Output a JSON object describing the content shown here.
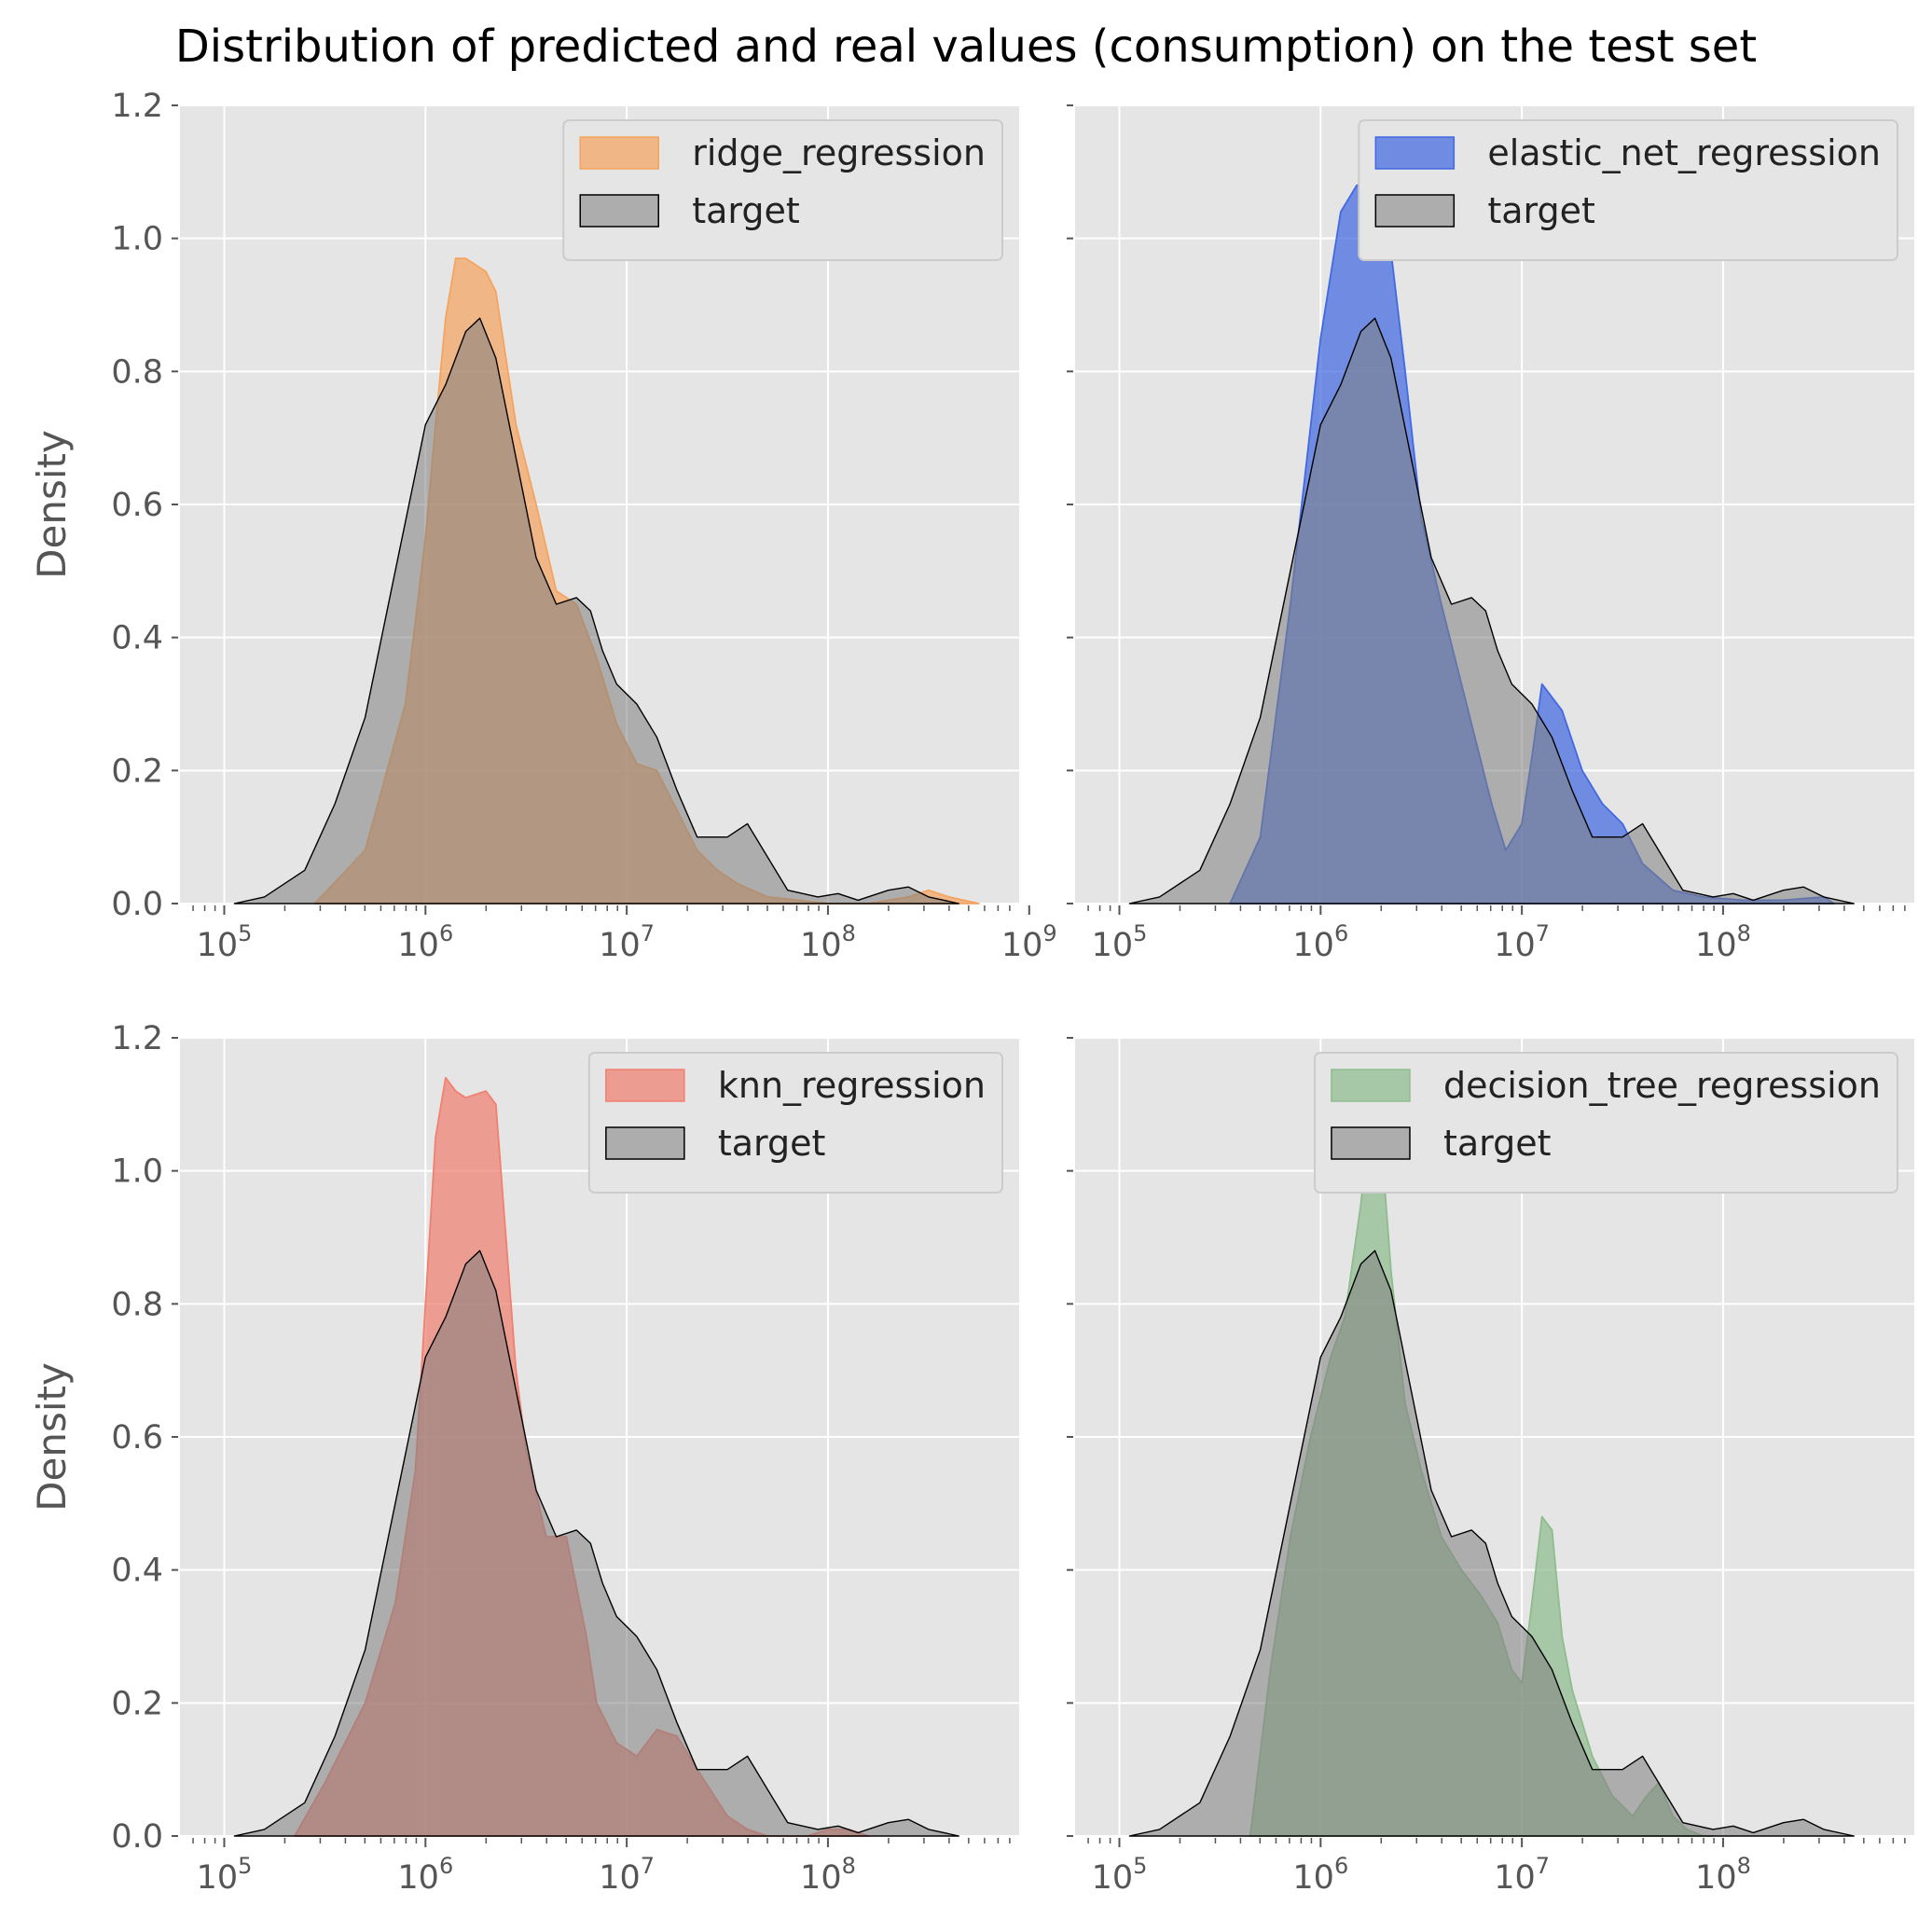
{
  "figure": {
    "title": "Distribution of predicted and real values (consumption) on the test set"
  },
  "chart_data": [
    {
      "type": "area",
      "xscale": "log",
      "xticks": [
        "10^5",
        "10^6",
        "10^7",
        "10^8",
        "10^9"
      ],
      "xlim_log10": [
        4.78,
        8.95
      ],
      "ylim": [
        0,
        1.2
      ],
      "yticks": [
        "0.0",
        "0.2",
        "0.4",
        "0.6",
        "0.8",
        "1.0",
        "1.2"
      ],
      "ylabel": "Density",
      "grid": true,
      "legend_position": "top-right",
      "series": [
        {
          "name": "ridge_regression",
          "color": "#f4a460",
          "x_log10": [
            5.45,
            5.7,
            5.9,
            6.0,
            6.05,
            6.1,
            6.15,
            6.2,
            6.25,
            6.3,
            6.35,
            6.4,
            6.45,
            6.55,
            6.65,
            6.75,
            6.85,
            6.95,
            7.0,
            7.05,
            7.15,
            7.25,
            7.35,
            7.45,
            7.55,
            7.7,
            7.85,
            8.0,
            8.2,
            8.4,
            8.5,
            8.6,
            8.75
          ],
          "y": [
            0.0,
            0.08,
            0.3,
            0.55,
            0.72,
            0.88,
            0.97,
            0.97,
            0.96,
            0.95,
            0.92,
            0.82,
            0.72,
            0.6,
            0.47,
            0.45,
            0.37,
            0.27,
            0.24,
            0.21,
            0.2,
            0.14,
            0.08,
            0.05,
            0.03,
            0.01,
            0.005,
            0.0,
            0.0,
            0.01,
            0.02,
            0.01,
            0.0
          ]
        },
        {
          "name": "target",
          "color": "#808080",
          "x_log10": [
            5.05,
            5.2,
            5.4,
            5.55,
            5.7,
            5.85,
            6.0,
            6.1,
            6.2,
            6.27,
            6.35,
            6.45,
            6.55,
            6.65,
            6.75,
            6.82,
            6.88,
            6.95,
            7.05,
            7.15,
            7.25,
            7.35,
            7.5,
            7.6,
            7.7,
            7.8,
            7.95,
            8.05,
            8.15,
            8.3,
            8.4,
            8.5,
            8.65
          ],
          "y": [
            0.0,
            0.01,
            0.05,
            0.15,
            0.28,
            0.5,
            0.72,
            0.78,
            0.86,
            0.88,
            0.82,
            0.67,
            0.52,
            0.45,
            0.46,
            0.44,
            0.38,
            0.33,
            0.3,
            0.25,
            0.17,
            0.1,
            0.1,
            0.12,
            0.07,
            0.02,
            0.01,
            0.015,
            0.005,
            0.02,
            0.025,
            0.01,
            0.0
          ]
        }
      ]
    },
    {
      "type": "area",
      "xscale": "log",
      "xticks": [
        "10^5",
        "10^6",
        "10^7",
        "10^8"
      ],
      "xlim_log10": [
        4.78,
        8.95
      ],
      "ylim": [
        0,
        1.2
      ],
      "yticks": [
        "0.0",
        "0.2",
        "0.4",
        "0.6",
        "0.8",
        "1.0",
        "1.2"
      ],
      "ylabel": "",
      "grid": true,
      "legend_position": "top-right",
      "series": [
        {
          "name": "elastic_net_regression",
          "color": "#4169e1",
          "x_log10": [
            5.55,
            5.7,
            5.85,
            6.0,
            6.1,
            6.18,
            6.25,
            6.3,
            6.35,
            6.42,
            6.5,
            6.6,
            6.75,
            6.85,
            6.92,
            7.0,
            7.05,
            7.1,
            7.2,
            7.3,
            7.4,
            7.5,
            7.6,
            7.75,
            7.9,
            8.1,
            8.3,
            8.5,
            8.55
          ],
          "y": [
            0.0,
            0.1,
            0.45,
            0.85,
            1.04,
            1.08,
            1.08,
            1.06,
            0.98,
            0.8,
            0.58,
            0.45,
            0.27,
            0.15,
            0.08,
            0.12,
            0.22,
            0.33,
            0.29,
            0.2,
            0.15,
            0.12,
            0.06,
            0.02,
            0.01,
            0.005,
            0.005,
            0.01,
            0.0
          ]
        },
        {
          "name": "target",
          "color": "#808080",
          "x_log10": [
            5.05,
            5.2,
            5.4,
            5.55,
            5.7,
            5.85,
            6.0,
            6.1,
            6.2,
            6.27,
            6.35,
            6.45,
            6.55,
            6.65,
            6.75,
            6.82,
            6.88,
            6.95,
            7.05,
            7.15,
            7.25,
            7.35,
            7.5,
            7.6,
            7.7,
            7.8,
            7.95,
            8.05,
            8.15,
            8.3,
            8.4,
            8.5,
            8.65
          ],
          "y": [
            0.0,
            0.01,
            0.05,
            0.15,
            0.28,
            0.5,
            0.72,
            0.78,
            0.86,
            0.88,
            0.82,
            0.67,
            0.52,
            0.45,
            0.46,
            0.44,
            0.38,
            0.33,
            0.3,
            0.25,
            0.17,
            0.1,
            0.1,
            0.12,
            0.07,
            0.02,
            0.01,
            0.015,
            0.005,
            0.02,
            0.025,
            0.01,
            0.0
          ]
        }
      ]
    },
    {
      "type": "area",
      "xscale": "log",
      "xticks": [
        "10^5",
        "10^6",
        "10^7",
        "10^8"
      ],
      "xlim_log10": [
        4.78,
        8.95
      ],
      "ylim": [
        0,
        1.2
      ],
      "yticks": [
        "0.0",
        "0.2",
        "0.4",
        "0.6",
        "0.8",
        "1.0",
        "1.2"
      ],
      "ylabel": "Density",
      "grid": true,
      "legend_position": "top-right",
      "series": [
        {
          "name": "knn_regression",
          "color": "#f08070",
          "x_log10": [
            5.35,
            5.5,
            5.7,
            5.85,
            5.95,
            6.0,
            6.05,
            6.1,
            6.15,
            6.2,
            6.3,
            6.35,
            6.4,
            6.45,
            6.5,
            6.6,
            6.7,
            6.8,
            6.85,
            6.95,
            7.05,
            7.15,
            7.25,
            7.35,
            7.5,
            7.6,
            7.7,
            7.9,
            8.0,
            8.1,
            8.2
          ],
          "y": [
            0.0,
            0.08,
            0.2,
            0.35,
            0.55,
            0.8,
            1.05,
            1.14,
            1.12,
            1.11,
            1.12,
            1.1,
            0.9,
            0.7,
            0.58,
            0.45,
            0.45,
            0.3,
            0.2,
            0.14,
            0.12,
            0.16,
            0.15,
            0.1,
            0.03,
            0.01,
            0.0,
            0.0,
            0.01,
            0.01,
            0.0
          ]
        },
        {
          "name": "target",
          "color": "#808080",
          "x_log10": [
            5.05,
            5.2,
            5.4,
            5.55,
            5.7,
            5.85,
            6.0,
            6.1,
            6.2,
            6.27,
            6.35,
            6.45,
            6.55,
            6.65,
            6.75,
            6.82,
            6.88,
            6.95,
            7.05,
            7.15,
            7.25,
            7.35,
            7.5,
            7.6,
            7.7,
            7.8,
            7.95,
            8.05,
            8.15,
            8.3,
            8.4,
            8.5,
            8.65
          ],
          "y": [
            0.0,
            0.01,
            0.05,
            0.15,
            0.28,
            0.5,
            0.72,
            0.78,
            0.86,
            0.88,
            0.82,
            0.67,
            0.52,
            0.45,
            0.46,
            0.44,
            0.38,
            0.33,
            0.3,
            0.25,
            0.17,
            0.1,
            0.1,
            0.12,
            0.07,
            0.02,
            0.01,
            0.015,
            0.005,
            0.02,
            0.025,
            0.01,
            0.0
          ]
        }
      ]
    },
    {
      "type": "area",
      "xscale": "log",
      "xticks": [
        "10^5",
        "10^6",
        "10^7",
        "10^8"
      ],
      "xlim_log10": [
        4.78,
        8.95
      ],
      "ylim": [
        0,
        1.2
      ],
      "yticks": [
        "0.0",
        "0.2",
        "0.4",
        "0.6",
        "0.8",
        "1.0",
        "1.2"
      ],
      "ylabel": "",
      "grid": true,
      "legend_position": "top-right",
      "series": [
        {
          "name": "decision_tree_regression",
          "color": "#8fbc8f",
          "x_log10": [
            5.65,
            5.75,
            5.85,
            5.95,
            6.05,
            6.12,
            6.2,
            6.25,
            6.3,
            6.35,
            6.42,
            6.5,
            6.6,
            6.7,
            6.8,
            6.88,
            6.95,
            7.0,
            7.05,
            7.1,
            7.15,
            7.2,
            7.25,
            7.35,
            7.45,
            7.55,
            7.62,
            7.68,
            7.75,
            7.82,
            7.9,
            7.95
          ],
          "y": [
            0.0,
            0.25,
            0.45,
            0.6,
            0.72,
            0.78,
            0.95,
            1.1,
            1.05,
            0.85,
            0.65,
            0.55,
            0.45,
            0.4,
            0.36,
            0.32,
            0.25,
            0.23,
            0.35,
            0.48,
            0.46,
            0.3,
            0.22,
            0.12,
            0.06,
            0.03,
            0.06,
            0.08,
            0.03,
            0.01,
            0.0,
            0.0
          ]
        },
        {
          "name": "target",
          "color": "#808080",
          "x_log10": [
            5.05,
            5.2,
            5.4,
            5.55,
            5.7,
            5.85,
            6.0,
            6.1,
            6.2,
            6.27,
            6.35,
            6.45,
            6.55,
            6.65,
            6.75,
            6.82,
            6.88,
            6.95,
            7.05,
            7.15,
            7.25,
            7.35,
            7.5,
            7.6,
            7.7,
            7.8,
            7.95,
            8.05,
            8.15,
            8.3,
            8.4,
            8.5,
            8.65
          ],
          "y": [
            0.0,
            0.01,
            0.05,
            0.15,
            0.28,
            0.5,
            0.72,
            0.78,
            0.86,
            0.88,
            0.82,
            0.67,
            0.52,
            0.45,
            0.46,
            0.44,
            0.38,
            0.33,
            0.3,
            0.25,
            0.17,
            0.1,
            0.1,
            0.12,
            0.07,
            0.02,
            0.01,
            0.015,
            0.005,
            0.02,
            0.025,
            0.01,
            0.0
          ]
        }
      ]
    }
  ]
}
